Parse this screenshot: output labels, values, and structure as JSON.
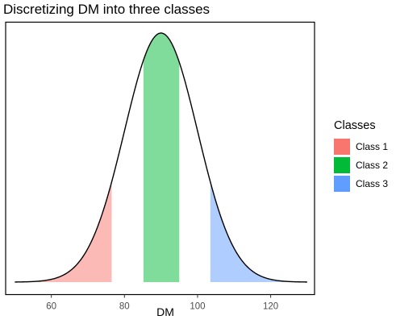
{
  "chart_data": {
    "type": "area",
    "title": "Discretizing DM into three classes",
    "xlabel": "DM",
    "ylabel": "",
    "xlim": [
      47.5,
      132
    ],
    "x_ticks": [
      60,
      80,
      100,
      120
    ],
    "grid": false,
    "legend_position": "right",
    "legend_title": "Classes",
    "curve": {
      "distribution": "normal",
      "mean": 90,
      "sd": 10,
      "x_range": [
        50,
        130
      ]
    },
    "series": [
      {
        "name": "Class 1",
        "x_range": [
          50,
          76.5
        ],
        "color": "#F8766D"
      },
      {
        "name": "Class 2",
        "x_range": [
          85.2,
          95
        ],
        "color": "#00BA38"
      },
      {
        "name": "Class 3",
        "x_range": [
          103.5,
          130
        ],
        "color": "#619CFF"
      }
    ]
  }
}
